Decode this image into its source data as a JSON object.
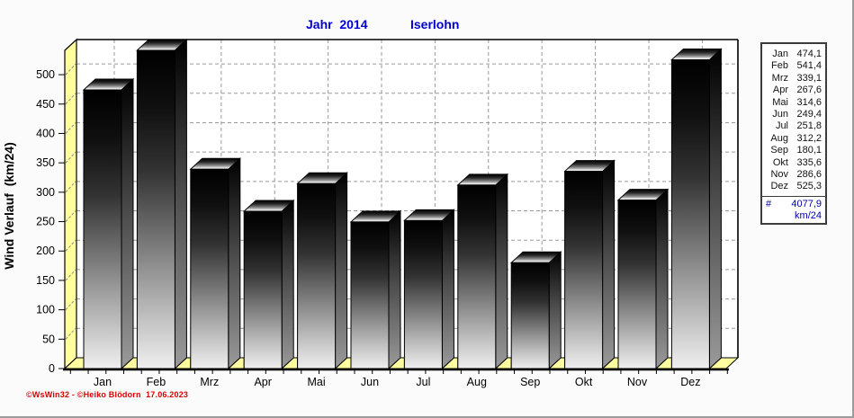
{
  "window": {
    "bg": "#fbfbfb",
    "border_color": "#9c9c9c"
  },
  "title": {
    "year": "Jahr  2014",
    "location": "Iserlohn",
    "color": "#0000d0"
  },
  "chart_data": {
    "type": "bar",
    "title": "Jahr 2014 Iserlohn",
    "xlabel": "",
    "ylabel": "Wind Verlauf  (km/24)",
    "categories": [
      "Jan",
      "Feb",
      "Mrz",
      "Apr",
      "Mai",
      "Jun",
      "Jul",
      "Aug",
      "Sep",
      "Okt",
      "Nov",
      "Dez"
    ],
    "values": [
      474.1,
      541.4,
      339.1,
      267.6,
      314.6,
      249.4,
      251.8,
      312.2,
      180.1,
      335.6,
      286.6,
      525.3
    ],
    "value_labels": [
      "474,1",
      "541,4",
      "339,1",
      "267,6",
      "314,6",
      "249,4",
      "251,8",
      "312,2",
      "180,1",
      "335,6",
      "286,6",
      "525,3"
    ],
    "yticks": [
      0,
      50,
      100,
      150,
      200,
      250,
      300,
      350,
      400,
      450,
      500
    ],
    "ylim": [
      0,
      541.4
    ],
    "grid": true,
    "legend_position": "right",
    "bar_style": "3d-gradient-column",
    "total": 4077.9,
    "unit": "km/24"
  },
  "legend": {
    "total_symbol": "#",
    "total_value": "4077,9",
    "unit": "km/24",
    "month_color": "#111111",
    "total_color": "#0000a6"
  },
  "colors": {
    "wall": "#ffffa0",
    "floor": "#ffffa0",
    "plot_bg": "#ffffff",
    "grid": "#9a9a9a",
    "frame": "#000000",
    "bar_outline": "#000000",
    "bar_front_top": "#000000",
    "bar_front_bottom": "#efefef",
    "bar_side_bottom": "#9a9a9a",
    "bar_top_front": "#ffffff"
  },
  "footer": {
    "copyright": "©WsWin32 - ©Heiko Blödorn  17.06.2023",
    "color": "#dd0000"
  }
}
